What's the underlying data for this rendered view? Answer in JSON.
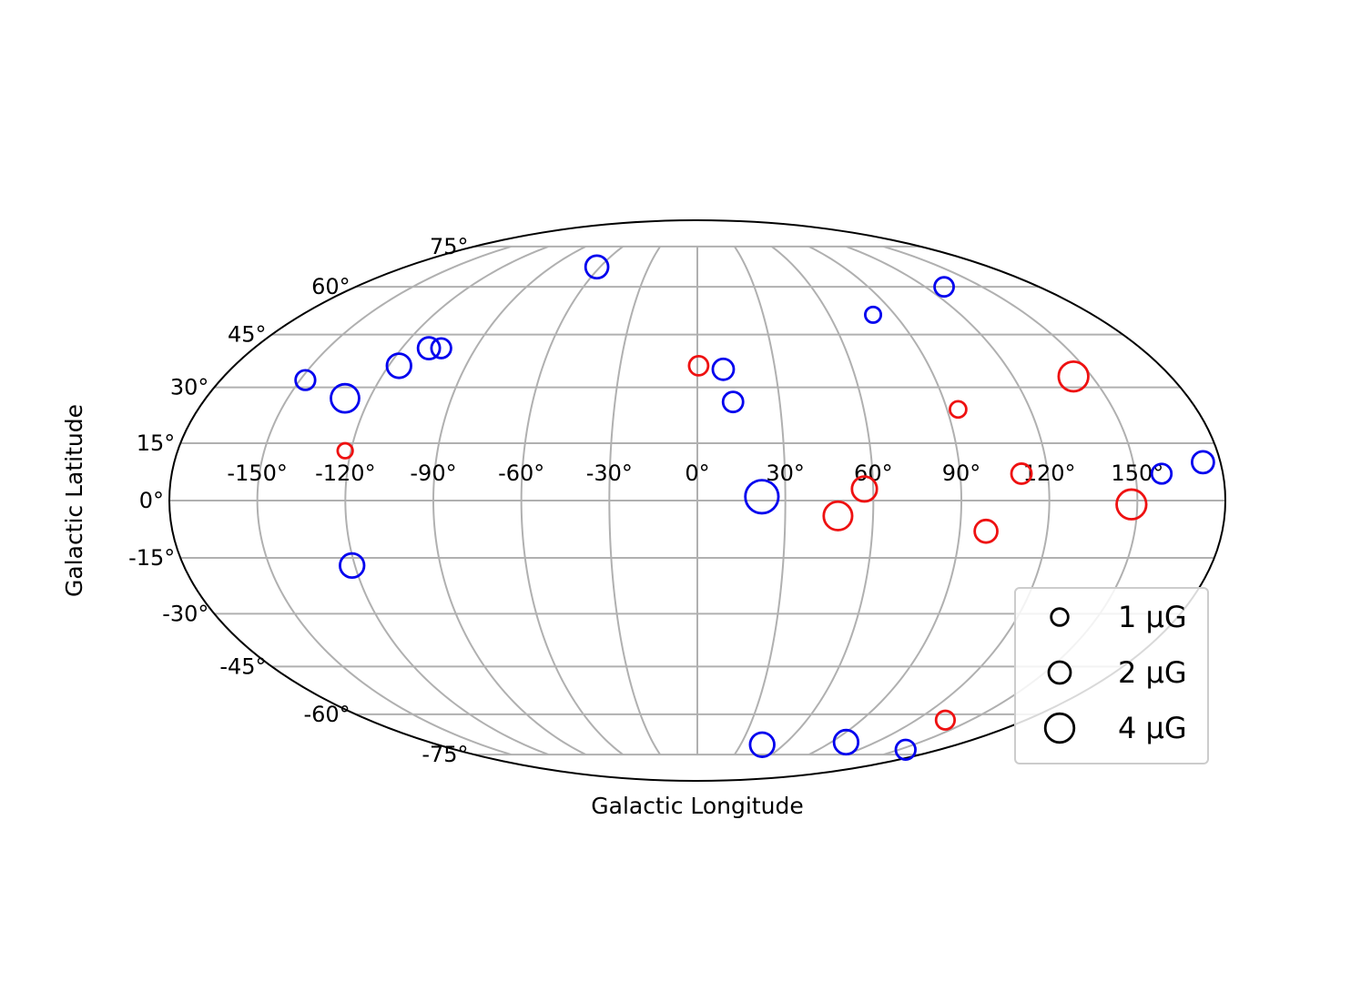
{
  "chart_data": {
    "type": "scatter",
    "projection": "mollweide",
    "xlabel": "Galactic Longitude",
    "ylabel": "Galactic Latitude",
    "xlim": [
      -180,
      180
    ],
    "ylim": [
      -90,
      90
    ],
    "grid": true,
    "x_ticks": [
      -150,
      -120,
      -90,
      -60,
      -30,
      0,
      30,
      60,
      90,
      120,
      150
    ],
    "x_tick_labels": [
      "-150°",
      "-120°",
      "-90°",
      "-60°",
      "-30°",
      "0°",
      "30°",
      "60°",
      "90°",
      "120°",
      "150°"
    ],
    "y_ticks": [
      -75,
      -60,
      -45,
      -30,
      -15,
      0,
      15,
      30,
      45,
      60,
      75
    ],
    "y_tick_labels": [
      "-75°",
      "-60°",
      "-45°",
      "-30°",
      "-15°",
      "0°",
      "15°",
      "30°",
      "45°",
      "60°",
      "75°"
    ],
    "colors": {
      "blue": "#0000ee",
      "red": "#ee1111",
      "grid": "#b0b0b0"
    },
    "series": [
      {
        "color": "blue",
        "points": [
          {
            "l": -62,
            "b": 67,
            "B": 2.2
          },
          {
            "l": -148,
            "b": 32,
            "B": 1.5
          },
          {
            "l": -129,
            "b": 27,
            "B": 3.8
          },
          {
            "l": -116,
            "b": 36,
            "B": 2.6
          },
          {
            "l": -109,
            "b": 41,
            "B": 2.0
          },
          {
            "l": -104,
            "b": 41,
            "B": 1.5
          },
          {
            "l": 10,
            "b": 35,
            "B": 1.8
          },
          {
            "l": 13,
            "b": 26,
            "B": 1.6
          },
          {
            "l": 22,
            "b": 1,
            "B": 5.6
          },
          {
            "l": 80,
            "b": 51,
            "B": 0.8
          },
          {
            "l": 130,
            "b": 60,
            "B": 1.4
          },
          {
            "l": 174,
            "b": 10,
            "B": 2.0
          },
          {
            "l": 159,
            "b": 7,
            "B": 1.5
          },
          {
            "l": -121,
            "b": -17,
            "B": 2.6
          },
          {
            "l": 45,
            "b": -71,
            "B": 2.6
          },
          {
            "l": 100,
            "b": -70,
            "B": 2.6
          },
          {
            "l": 155,
            "b": -73,
            "B": 1.5
          }
        ]
      },
      {
        "color": "red",
        "points": [
          {
            "l": 0.5,
            "b": 36,
            "B": 1.4
          },
          {
            "l": -122,
            "b": 13,
            "B": 0.7
          },
          {
            "l": 94,
            "b": 24,
            "B": 0.9
          },
          {
            "l": 143,
            "b": 33,
            "B": 4.3
          },
          {
            "l": 57,
            "b": 3,
            "B": 2.8
          },
          {
            "l": 48,
            "b": -4,
            "B": 3.9
          },
          {
            "l": 99,
            "b": -8,
            "B": 2.2
          },
          {
            "l": 111,
            "b": 7,
            "B": 1.6
          },
          {
            "l": 148,
            "b": -1,
            "B": 4.3
          },
          {
            "l": 136,
            "b": -62,
            "B": 1.3
          }
        ]
      }
    ],
    "legend": {
      "placement": "lower-right",
      "entries": [
        {
          "label": "1 μG",
          "B": 1
        },
        {
          "label": "2 μG",
          "B": 2
        },
        {
          "label": "4 μG",
          "B": 4
        }
      ]
    }
  }
}
